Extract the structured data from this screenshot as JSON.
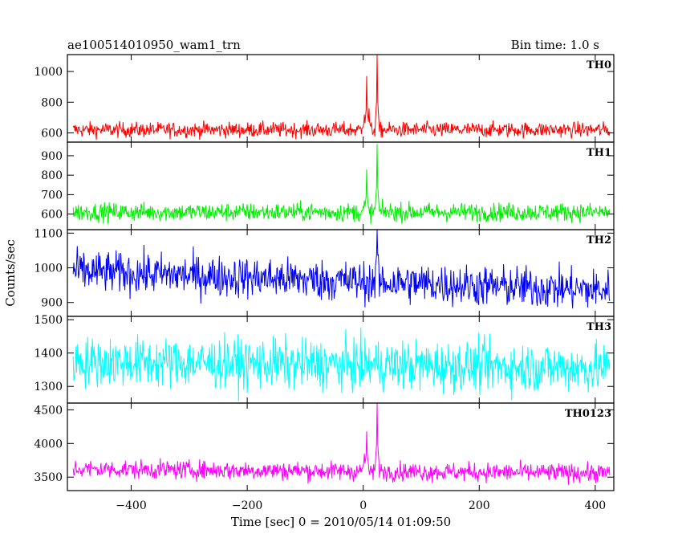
{
  "header": {
    "left": "ae100514010950_wam1_trn",
    "right": "Bin time: 1.0 s"
  },
  "chart_data": {
    "type": "line",
    "title": "ae100514010950_wam1_trn",
    "xlabel": "Time [sec] 0 = 2010/05/14 01:09:50",
    "ylabel": "Counts/sec",
    "xlim": [
      -510,
      432
    ],
    "x_range": [
      -500,
      425
    ],
    "x_ticks": [
      -400,
      -200,
      0,
      200,
      400
    ],
    "x_tick_labels": [
      "−400",
      "−200",
      "0",
      "200",
      "400"
    ],
    "series": [
      {
        "name": "TH0",
        "color": "#ff0000",
        "ylim": [
          540,
          1110
        ],
        "y_ticks": [
          600,
          800,
          1000
        ],
        "baseline": 620,
        "noise_sd": 25,
        "trend_end": 620,
        "features": [
          {
            "x": 2,
            "value": 720
          },
          {
            "x": 6,
            "value": 970
          },
          {
            "x": 10,
            "value": 760
          },
          {
            "x": 24,
            "value": 1110
          }
        ]
      },
      {
        "name": "TH1",
        "color": "#00ee00",
        "ylim": [
          520,
          970
        ],
        "y_ticks": [
          600,
          700,
          800,
          900
        ],
        "baseline": 610,
        "noise_sd": 24,
        "trend_end": 610,
        "features": [
          {
            "x": 2,
            "value": 670
          },
          {
            "x": 6,
            "value": 830
          },
          {
            "x": 24,
            "value": 960
          }
        ]
      },
      {
        "name": "TH2",
        "color": "#0000ff",
        "ylim": [
          860,
          1110
        ],
        "y_ticks": [
          900,
          1000,
          1100
        ],
        "baseline": 990,
        "noise_sd": 30,
        "trend_end": 935,
        "features": [
          {
            "x": 24,
            "value": 1110
          }
        ]
      },
      {
        "name": "TH3",
        "color": "#00ffff",
        "ylim": [
          1250,
          1510
        ],
        "y_ticks": [
          1300,
          1400,
          1500
        ],
        "baseline": 1375,
        "noise_sd": 38,
        "trend_end": 1355,
        "features": []
      },
      {
        "name": "TH0123",
        "color": "#ff00ff",
        "ylim": [
          3300,
          4600
        ],
        "y_ticks": [
          3500,
          4000,
          4500
        ],
        "baseline": 3620,
        "noise_sd": 70,
        "trend_end": 3560,
        "features": [
          {
            "x": 2,
            "value": 3850
          },
          {
            "x": 6,
            "value": 4180
          },
          {
            "x": 24,
            "value": 4600
          }
        ]
      }
    ]
  }
}
